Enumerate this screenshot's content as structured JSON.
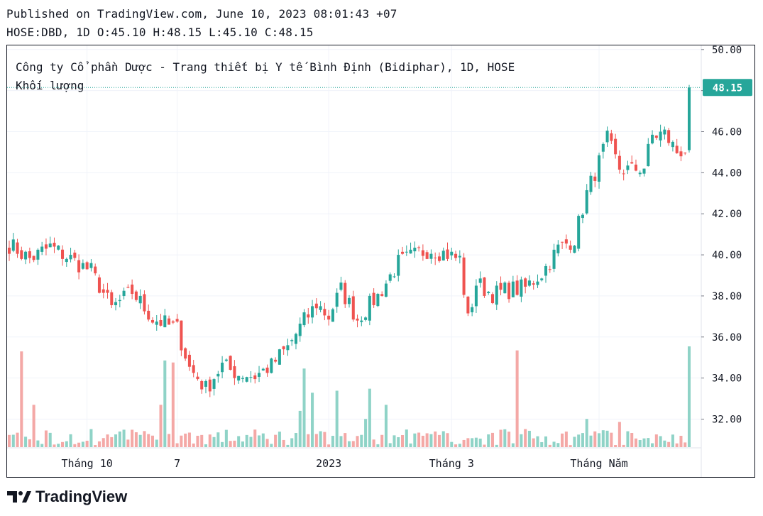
{
  "header": {
    "published": "Published on TradingView.com, June 10, 2023 08:01:43 +07",
    "ohlc_line": "HOSE:DBD, 1D O:45.10 H:48.15 L:45.10 C:48.15"
  },
  "colors": {
    "up": "#26a69a",
    "down": "#ef5350",
    "vol_up": "#8fd3c7",
    "vol_down": "#f4a8a6",
    "text": "#131722",
    "grid": "#f0f3fa"
  },
  "brand": {
    "logo_text": "TradingView"
  },
  "chart_data": {
    "type": "candlestick",
    "title": "Công ty Cổ phần Dược - Trang thiết bị Y tế Bình Định (Bidiphar), 1D, HOSE",
    "subtitle": "Khối lượng",
    "y_ticks": [
      "50.00",
      "48.00",
      "46.00",
      "44.00",
      "42.00",
      "40.00",
      "38.00",
      "36.00",
      "34.00",
      "32.00"
    ],
    "ylim": [
      30.6,
      50.2
    ],
    "x_ticks": [
      {
        "label": "Tháng 10",
        "index": 19
      },
      {
        "label": "7",
        "index": 41
      },
      {
        "label": "2023",
        "index": 78
      },
      {
        "label": "Tháng 3",
        "index": 108
      },
      {
        "label": "Tháng Năm",
        "index": 144
      }
    ],
    "last_price": "48.15",
    "n_bars": 167,
    "keypoints": [
      [
        0,
        40.5
      ],
      [
        5,
        39.8
      ],
      [
        10,
        40.4
      ],
      [
        15,
        39.8
      ],
      [
        20,
        39.2
      ],
      [
        25,
        37.4
      ],
      [
        30,
        38.2
      ],
      [
        35,
        36.9
      ],
      [
        41,
        36.4
      ],
      [
        44,
        34.5
      ],
      [
        48,
        33.5
      ],
      [
        52,
        34.6
      ],
      [
        56,
        34.2
      ],
      [
        60,
        34.1
      ],
      [
        64,
        34.6
      ],
      [
        68,
        35.5
      ],
      [
        72,
        36.8
      ],
      [
        75,
        37.6
      ],
      [
        78,
        37.0
      ],
      [
        81,
        38.3
      ],
      [
        85,
        36.9
      ],
      [
        90,
        38.0
      ],
      [
        95,
        39.6
      ],
      [
        100,
        40.1
      ],
      [
        103,
        40.3
      ],
      [
        106,
        40.1
      ],
      [
        110,
        39.8
      ],
      [
        112,
        36.8
      ],
      [
        114,
        38.6
      ],
      [
        118,
        38.1
      ],
      [
        122,
        38.3
      ],
      [
        126,
        38.4
      ],
      [
        130,
        39.1
      ],
      [
        134,
        40.3
      ],
      [
        138,
        40.8
      ],
      [
        141,
        43.0
      ],
      [
        144,
        44.5
      ],
      [
        146,
        45.6
      ],
      [
        149,
        44.2
      ],
      [
        152,
        44.1
      ],
      [
        155,
        44.3
      ],
      [
        157,
        45.8
      ],
      [
        160,
        45.9
      ],
      [
        163,
        45.0
      ],
      [
        165,
        45.1
      ],
      [
        166,
        48.15
      ]
    ],
    "volume_peaks": [
      {
        "index": 3,
        "rel": 0.95
      },
      {
        "index": 6,
        "rel": 0.42
      },
      {
        "index": 37,
        "rel": 0.42
      },
      {
        "index": 38,
        "rel": 0.86
      },
      {
        "index": 40,
        "rel": 0.84
      },
      {
        "index": 72,
        "rel": 0.78
      },
      {
        "index": 71,
        "rel": 0.36
      },
      {
        "index": 74,
        "rel": 0.54
      },
      {
        "index": 80,
        "rel": 0.56
      },
      {
        "index": 87,
        "rel": 0.28
      },
      {
        "index": 88,
        "rel": 0.58
      },
      {
        "index": 92,
        "rel": 0.42
      },
      {
        "index": 124,
        "rel": 0.96
      },
      {
        "index": 141,
        "rel": 0.28
      },
      {
        "index": 149,
        "rel": 0.25
      },
      {
        "index": 166,
        "rel": 1.0
      }
    ]
  }
}
